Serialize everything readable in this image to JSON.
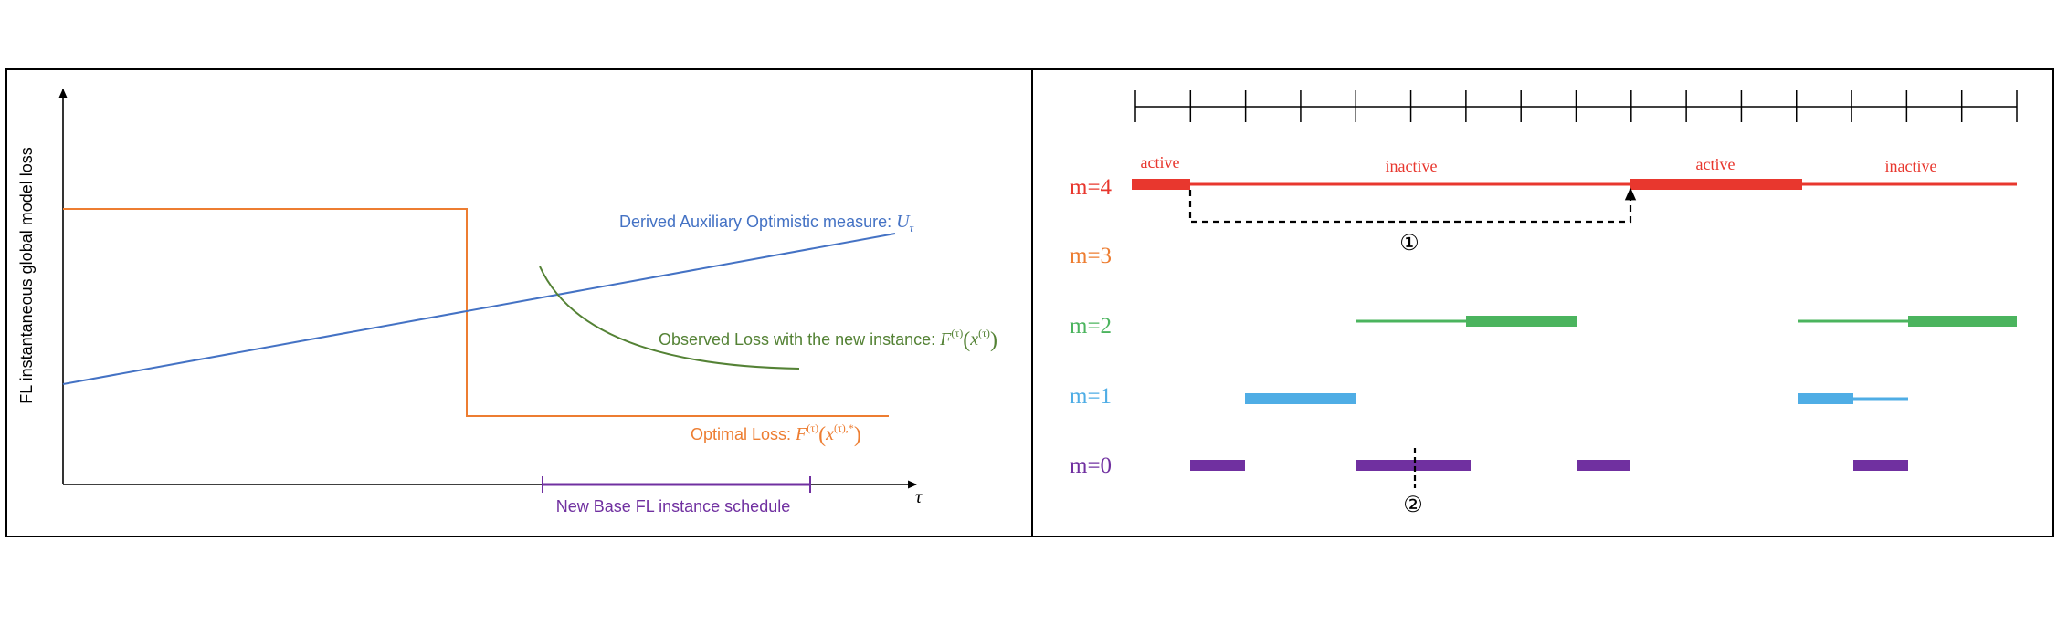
{
  "left_panel": {
    "y_axis_label": "FL instantaneous global model loss",
    "x_axis_symbol": "τ",
    "series": {
      "optimistic": {
        "label": "Derived Auxiliary Optimistic measure: ",
        "math": "U",
        "sub": "τ",
        "color": "#4472C4"
      },
      "observed": {
        "label": "Observed Loss with the new instance: ",
        "math": "F",
        "sup": "(τ)",
        "arg_open": "(",
        "arg_var": "x",
        "arg_sup": "(τ)",
        "arg_close": ")",
        "color": "#548235"
      },
      "optimal": {
        "label": "Optimal Loss: ",
        "math": "F",
        "sup": "(τ)",
        "arg_open": "(",
        "arg_var": "x",
        "arg_sup": "(τ),*",
        "arg_close": ")",
        "color": "#ED7D31"
      }
    },
    "schedule": {
      "label": "New Base FL instance schedule",
      "color": "#7030A0"
    }
  },
  "right_panel": {
    "rows": [
      {
        "label": "m=4",
        "color": "#E8372E"
      },
      {
        "label": "m=3",
        "color": "#ED7D31"
      },
      {
        "label": "m=2",
        "color": "#4BB45E"
      },
      {
        "label": "m=1",
        "color": "#4FADE5"
      },
      {
        "label": "m=0",
        "color": "#7030A0"
      }
    ],
    "status_labels": [
      "active",
      "inactive",
      "active",
      "inactive"
    ],
    "markers": [
      "①",
      "②"
    ]
  },
  "colors": {
    "axis": "#000000",
    "frame": "#000000"
  }
}
